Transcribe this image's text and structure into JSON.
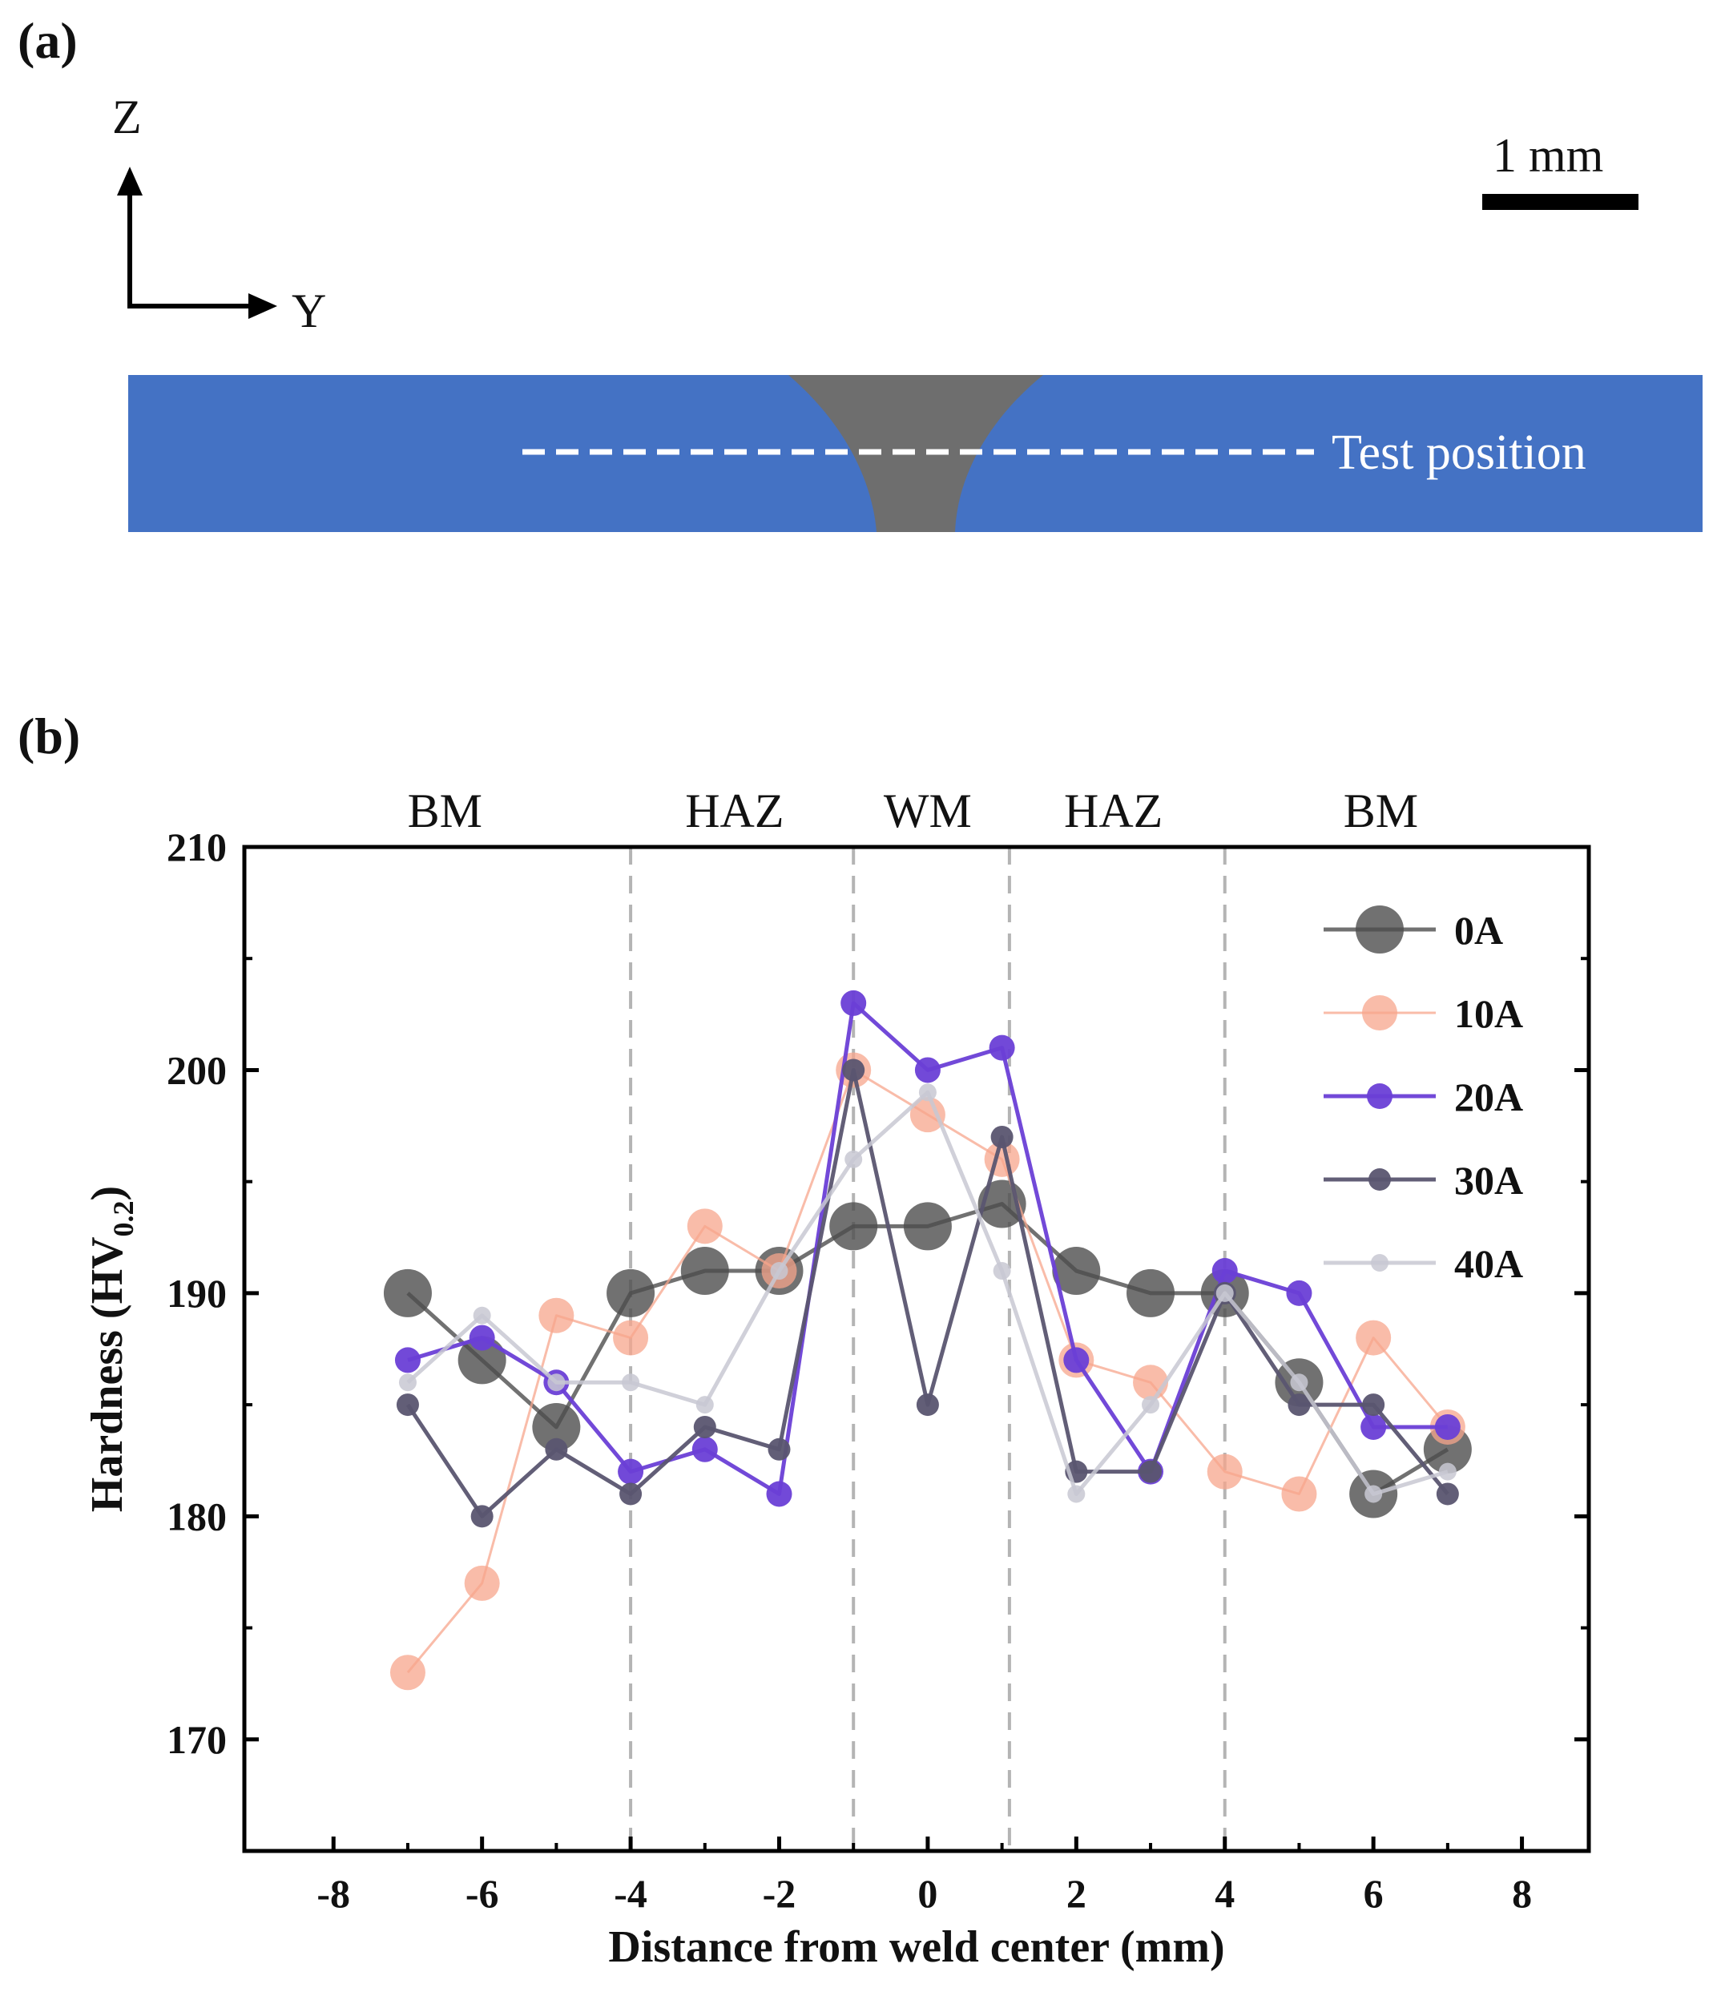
{
  "panels": {
    "a_label": "(a)",
    "b_label": "(b)"
  },
  "diagram": {
    "axis_z": "Z",
    "axis_y": "Y",
    "scale_bar_label": "1 mm",
    "test_position_label": "Test position",
    "colors": {
      "plate": "#4472c4",
      "weld": "#6e6e6e",
      "scale_bar": "#000000",
      "test_line": "#ffffff"
    }
  },
  "chart_data": {
    "type": "line",
    "title": "",
    "xlabel": "Distance from weld center (mm)",
    "ylabel": "Hardness (HV0.2)",
    "ylabel_main": "Hardness (HV",
    "ylabel_sub": "0.2",
    "ylabel_close": ")",
    "xlim": [
      -9.2,
      8.9
    ],
    "ylim": [
      165,
      210
    ],
    "xticks": [
      -8,
      -6,
      -4,
      -2,
      0,
      2,
      4,
      6,
      8
    ],
    "xtick_labels": [
      "-8",
      "-6",
      "-4",
      "-2",
      "0",
      "2",
      "4",
      "6",
      "8"
    ],
    "yticks": [
      170,
      180,
      190,
      200,
      210
    ],
    "ytick_labels": [
      "170",
      "180",
      "190",
      "200",
      "210"
    ],
    "region_boundaries": [
      -4,
      -1,
      1.1,
      4
    ],
    "regions": [
      {
        "label": "BM",
        "center": -6.5
      },
      {
        "label": "HAZ",
        "center": -2.6
      },
      {
        "label": "WM",
        "center": 0
      },
      {
        "label": "HAZ",
        "center": 2.5
      },
      {
        "label": "BM",
        "center": 6.1
      }
    ],
    "legend_position": "top-right",
    "x": [
      -7,
      -6,
      -5,
      -4,
      -3,
      -2,
      -1,
      0,
      1,
      2,
      3,
      4,
      5,
      6,
      7
    ],
    "series": [
      {
        "name": "0A",
        "color": "#4d4d4d",
        "opacity": 0.8,
        "marker_r": 30,
        "line_w": 5,
        "values": [
          190,
          187,
          184,
          190,
          191,
          191,
          193,
          193,
          194,
          191,
          190,
          190,
          186,
          181,
          183
        ]
      },
      {
        "name": "10A",
        "color": "#f7a58c",
        "opacity": 0.75,
        "marker_r": 22,
        "line_w": 3,
        "values": [
          173,
          177,
          189,
          188,
          193,
          191,
          200,
          198,
          196,
          187,
          186,
          182,
          181,
          188,
          184
        ]
      },
      {
        "name": "20A",
        "color": "#6a3fd6",
        "opacity": 0.95,
        "marker_r": 16,
        "line_w": 5,
        "values": [
          187,
          188,
          186,
          182,
          183,
          181,
          203,
          200,
          201,
          187,
          182,
          191,
          190,
          184,
          184
        ]
      },
      {
        "name": "30A",
        "color": "#5a5570",
        "opacity": 0.95,
        "marker_r": 14,
        "line_w": 5,
        "values": [
          185,
          180,
          183,
          181,
          184,
          183,
          200,
          185,
          197,
          182,
          182,
          190,
          185,
          185,
          181
        ]
      },
      {
        "name": "40A",
        "color": "#c8c8d2",
        "opacity": 0.85,
        "marker_r": 11,
        "line_w": 5,
        "values": [
          186,
          189,
          186,
          186,
          185,
          191,
          196,
          199,
          191,
          181,
          185,
          190,
          186,
          181,
          182
        ]
      }
    ]
  }
}
